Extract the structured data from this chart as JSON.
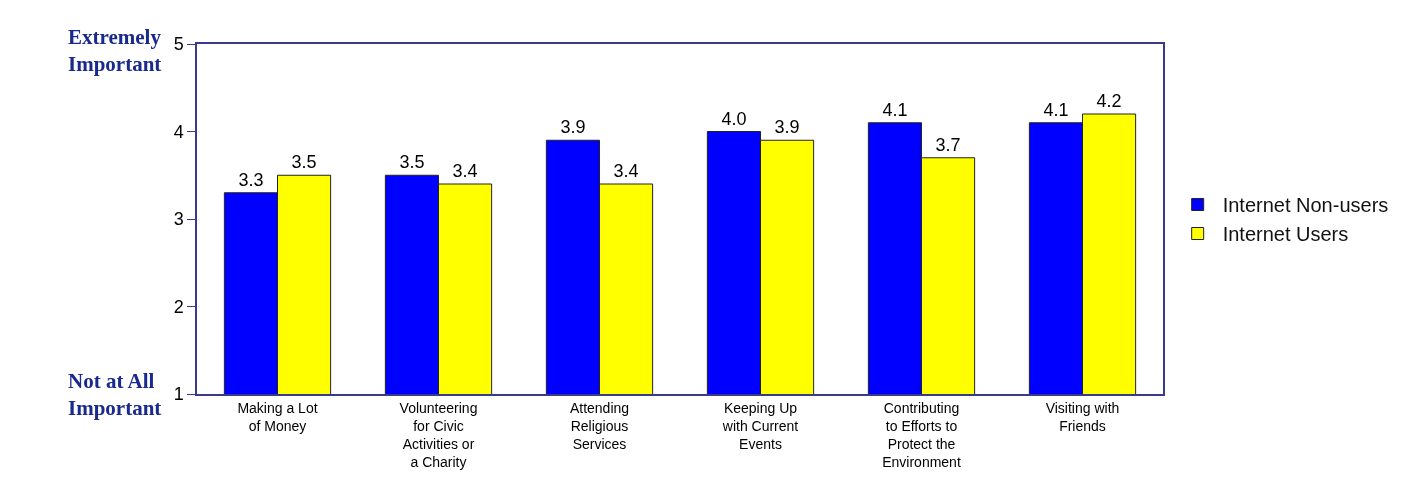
{
  "chart_data": {
    "type": "bar",
    "categories": [
      "Making a Lot of Money",
      "Volunteering for Civic Activities or a Charity",
      "Attending Religious Services",
      "Keeping Up with Current Events",
      "Contributing to Efforts to Protect the Environment",
      "Visiting with Friends"
    ],
    "series": [
      {
        "name": "Internet Non-users",
        "color": "#0000ff",
        "values": [
          3.3,
          3.5,
          3.9,
          4.0,
          4.1,
          4.1
        ],
        "value_labels": [
          "3.3",
          "3.5",
          "3.9",
          "4.0",
          "4.1",
          "4.1"
        ]
      },
      {
        "name": "Internet Users",
        "color": "#ffff00",
        "values": [
          3.5,
          3.4,
          3.4,
          3.9,
          3.7,
          4.2
        ],
        "value_labels": [
          "3.5",
          "3.4",
          "3.4",
          "3.9",
          "3.7",
          "4.2"
        ]
      }
    ],
    "ylim": [
      1,
      5
    ],
    "yticks": [
      1,
      2,
      3,
      4,
      5
    ],
    "annotations": [
      "Extremely Important",
      "Not at All Important"
    ],
    "grid": false,
    "legend": "right"
  }
}
